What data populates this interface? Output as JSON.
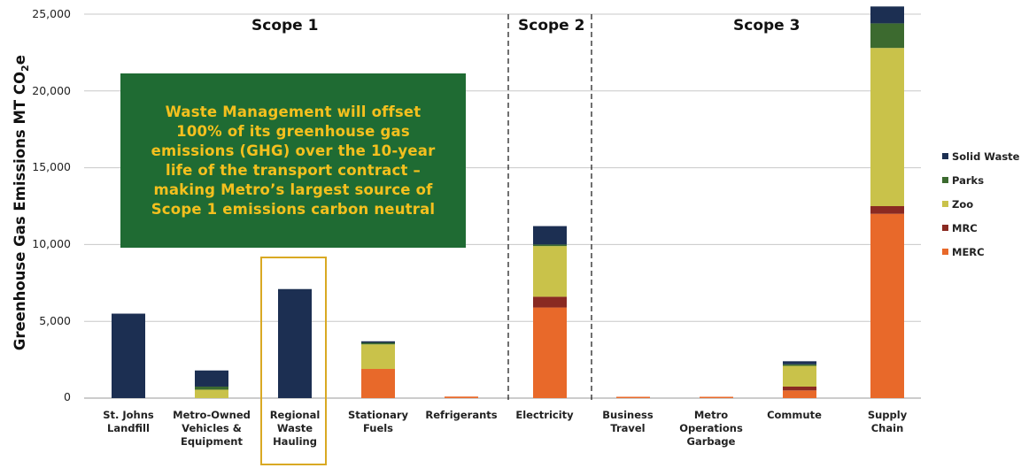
{
  "chart_data": {
    "type": "bar",
    "stacked": true,
    "ylabel_main": "Greenhouse Gas Emissions MT CO",
    "ylabel_sub": "2",
    "ylabel_tail": "e",
    "ylim": [
      0,
      25000
    ],
    "yticks": [
      "0",
      "5,000",
      "10,000",
      "15,000",
      "20,000",
      "25,000"
    ],
    "ytick_values": [
      0,
      5000,
      10000,
      15000,
      20000,
      25000
    ],
    "grid": true,
    "legend_position": "right",
    "categories": [
      "St. Johns\nLandfill",
      "Metro-Owned\nVehicles &\nEquipment",
      "Regional\nWaste\nHauling",
      "Stationary\nFuels",
      "Refrigerants",
      "Electricity",
      "Business\nTravel",
      "Metro\nOperations\nGarbage",
      "Commute",
      "Supply\nChain"
    ],
    "series": [
      {
        "name": "MERC",
        "color": "#e8692a",
        "values": [
          0,
          0,
          0,
          1900,
          100,
          5900,
          50,
          50,
          500,
          12000
        ]
      },
      {
        "name": "MRC",
        "color": "#8a2a22",
        "values": [
          0,
          0,
          0,
          0,
          0,
          700,
          0,
          0,
          250,
          500
        ]
      },
      {
        "name": "Zoo",
        "color": "#c9c24a",
        "values": [
          0,
          550,
          0,
          1600,
          0,
          3300,
          0,
          0,
          1350,
          10300
        ]
      },
      {
        "name": "Parks",
        "color": "#3c6a2f",
        "values": [
          0,
          200,
          0,
          100,
          0,
          100,
          0,
          0,
          100,
          1600
        ]
      },
      {
        "name": "Solid Waste",
        "color": "#1c2f52",
        "values": [
          5500,
          1050,
          7100,
          100,
          0,
          1200,
          0,
          0,
          200,
          1100
        ]
      }
    ],
    "legend_order": [
      "Solid Waste",
      "Parks",
      "Zoo",
      "MRC",
      "MERC"
    ],
    "scopes": [
      {
        "label": "Scope 1"
      },
      {
        "label": "Scope 2"
      },
      {
        "label": "Scope 3"
      }
    ],
    "annotation": "Waste Management will offset 100% of its greenhouse gas emissions (GHG) over the 10-year life of the transport contract – making Metro’s largest source of Scope 1 emissions carbon neutral",
    "highlighted_category": "Regional\nWaste\nHauling"
  },
  "colors": {
    "callout_bg": "#1f6b33",
    "callout_text": "#f4c01e",
    "highlight_border": "#d9a923",
    "grid": "#c8c8c8"
  }
}
